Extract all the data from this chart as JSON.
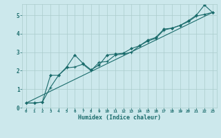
{
  "xlabel": "Humidex (Indice chaleur)",
  "bg_color": "#cce8ec",
  "line_color": "#1a6b6b",
  "grid_color": "#aacccc",
  "xlim": [
    -0.5,
    23.5
  ],
  "ylim": [
    0,
    5.6
  ],
  "yticks": [
    0,
    1,
    2,
    3,
    4,
    5
  ],
  "xticks": [
    0,
    1,
    2,
    3,
    4,
    5,
    6,
    7,
    8,
    9,
    10,
    11,
    12,
    13,
    14,
    15,
    16,
    17,
    18,
    19,
    20,
    21,
    22,
    23
  ],
  "series1_x": [
    0,
    1,
    2,
    3,
    4,
    5,
    6,
    7,
    8,
    9,
    10,
    11,
    12,
    13,
    14,
    15,
    16,
    17,
    18,
    19,
    20,
    21,
    22,
    23
  ],
  "series1_y": [
    0.25,
    0.25,
    0.3,
    1.75,
    1.75,
    2.2,
    2.85,
    2.4,
    2.05,
    2.3,
    2.85,
    2.9,
    2.95,
    3.2,
    3.35,
    3.65,
    3.8,
    4.25,
    4.3,
    4.45,
    4.7,
    5.0,
    5.55,
    5.15
  ],
  "series2_x": [
    0,
    1,
    2,
    3,
    4,
    5,
    6,
    7,
    8,
    9,
    10,
    11,
    12,
    13,
    14,
    15,
    16,
    17,
    18,
    19,
    20,
    21,
    22,
    23
  ],
  "series2_y": [
    0.25,
    0.25,
    0.3,
    1.1,
    1.75,
    2.15,
    2.2,
    2.35,
    2.0,
    2.45,
    2.5,
    2.85,
    2.9,
    3.0,
    3.35,
    3.6,
    3.75,
    4.2,
    4.3,
    4.45,
    4.65,
    4.95,
    5.05,
    5.15
  ],
  "series3_x": [
    0,
    23
  ],
  "series3_y": [
    0.25,
    5.15
  ]
}
